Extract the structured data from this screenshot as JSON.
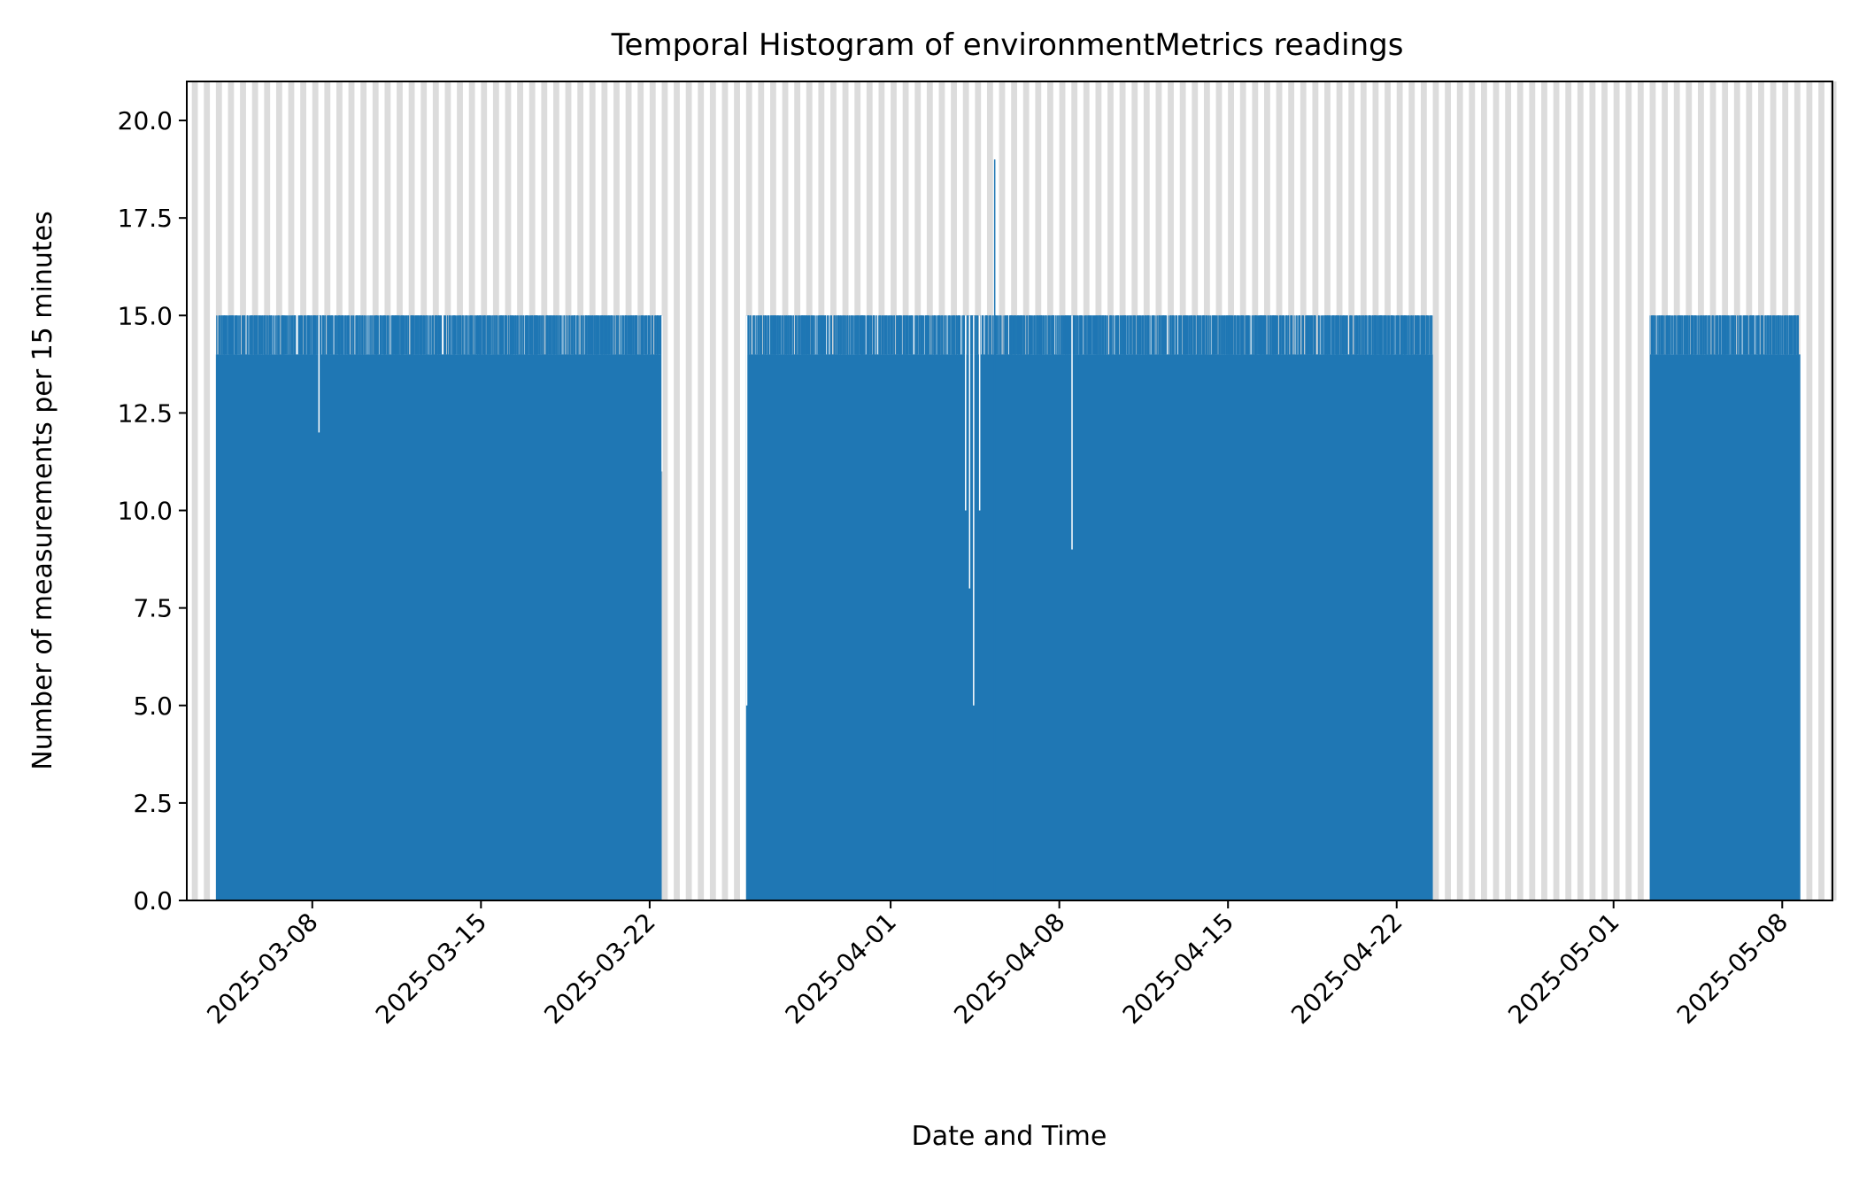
{
  "chart_data": {
    "type": "bar",
    "title": "Temporal Histogram of environmentMetrics readings",
    "xlabel": "Date and Time",
    "ylabel": "Number of measurements per 15 minutes",
    "bin_minutes": 15,
    "xlim": [
      "2025-03-02T19:00",
      "2025-05-10T02:00"
    ],
    "ylim": [
      0,
      21
    ],
    "x_ticks": [
      "2025-03-08",
      "2025-03-15",
      "2025-03-22",
      "2025-04-01",
      "2025-04-08",
      "2025-04-15",
      "2025-04-22",
      "2025-05-01",
      "2025-05-08"
    ],
    "y_ticks": [
      "0.0",
      "2.5",
      "5.0",
      "7.5",
      "10.0",
      "12.5",
      "15.0",
      "17.5",
      "20.0"
    ],
    "grid": false,
    "legend": "none",
    "colors": {
      "bars": "#1f77b4",
      "background_shading": "#dcdcdc"
    },
    "background_shading": "alternating light-grey vertical bands across the full height of the plot",
    "series": [
      {
        "segments": [
          {
            "start": "2025-03-04T00:00",
            "end": "2025-03-22T12:00",
            "typical": 14,
            "max": 15
          },
          {
            "start": "2025-03-26T00:00",
            "end": "2025-04-23T12:00",
            "typical": 14,
            "max": 15
          },
          {
            "start": "2025-05-02T12:00",
            "end": "2025-05-08T18:00",
            "typical": 14,
            "max": 15
          }
        ],
        "notable_bins": [
          {
            "x": "2025-03-08T06:00",
            "value": 12
          },
          {
            "x": "2025-03-22T11:45",
            "value": 11
          },
          {
            "x": "2025-03-26T00:00",
            "value": 5
          },
          {
            "x": "2025-04-04T02:00",
            "value": 10
          },
          {
            "x": "2025-04-04T06:00",
            "value": 8
          },
          {
            "x": "2025-04-04T10:00",
            "value": 5
          },
          {
            "x": "2025-04-04T16:00",
            "value": 10
          },
          {
            "x": "2025-04-05T07:00",
            "value": 19
          },
          {
            "x": "2025-04-08T12:00",
            "value": 9
          }
        ]
      }
    ]
  }
}
